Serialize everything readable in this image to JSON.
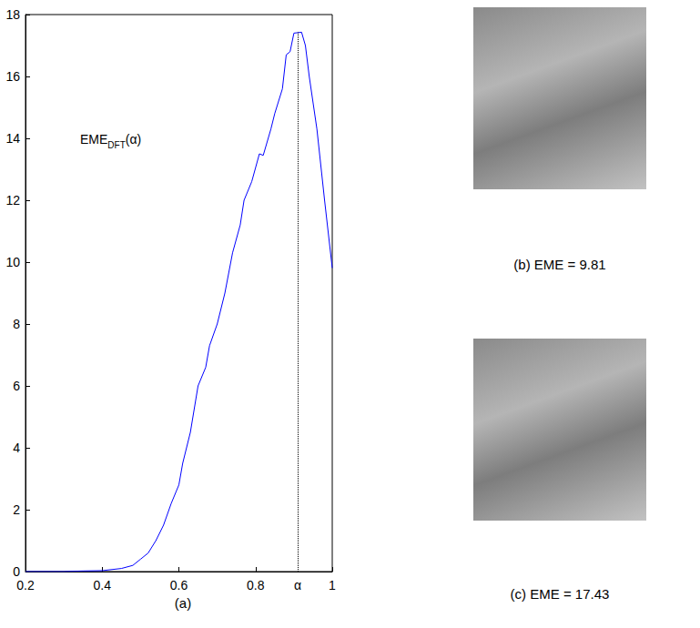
{
  "chart_data": {
    "type": "line",
    "caption": "(a)",
    "annotation": {
      "base": "EME",
      "subscript": "DFT",
      "tail": "(α)"
    },
    "x": [
      0.2,
      0.3,
      0.35,
      0.4,
      0.45,
      0.48,
      0.5,
      0.52,
      0.54,
      0.56,
      0.58,
      0.6,
      0.61,
      0.63,
      0.65,
      0.67,
      0.68,
      0.7,
      0.72,
      0.74,
      0.76,
      0.77,
      0.79,
      0.81,
      0.82,
      0.84,
      0.85,
      0.87,
      0.88,
      0.89,
      0.9,
      0.92,
      0.93,
      0.94,
      0.96,
      0.98,
      1.0
    ],
    "values": [
      0,
      0,
      0.02,
      0.03,
      0.1,
      0.2,
      0.4,
      0.6,
      1.0,
      1.5,
      2.2,
      2.8,
      3.5,
      4.5,
      6.0,
      6.6,
      7.3,
      8.0,
      9.0,
      10.3,
      11.2,
      12.0,
      12.6,
      13.5,
      13.45,
      14.3,
      14.8,
      15.6,
      16.7,
      16.8,
      17.4,
      17.43,
      17.0,
      16.0,
      14.3,
      12.0,
      9.81
    ],
    "color": "#0000ff",
    "marker_line": {
      "x": 0.91,
      "y": 17.43,
      "label": "α"
    },
    "xlim": [
      0.2,
      1
    ],
    "xticks": [
      0.2,
      0.4,
      0.6,
      0.8,
      1
    ],
    "ylim": [
      0,
      18
    ],
    "yticks": [
      0,
      2,
      4,
      6,
      8,
      10,
      12,
      14,
      16,
      18
    ],
    "grid": false,
    "images": [
      {
        "caption": "(b) EME = 9.81"
      },
      {
        "caption": "(c) EME = 17.43"
      }
    ]
  }
}
